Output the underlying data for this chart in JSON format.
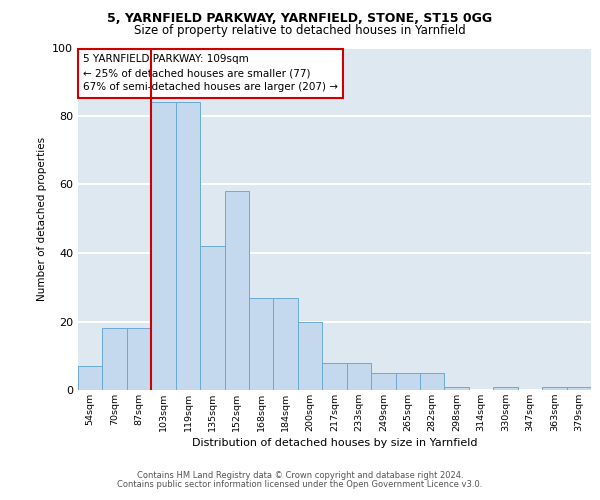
{
  "title1": "5, YARNFIELD PARKWAY, YARNFIELD, STONE, ST15 0GG",
  "title2": "Size of property relative to detached houses in Yarnfield",
  "xlabel": "Distribution of detached houses by size in Yarnfield",
  "ylabel": "Number of detached properties",
  "bar_labels": [
    "54sqm",
    "70sqm",
    "87sqm",
    "103sqm",
    "119sqm",
    "135sqm",
    "152sqm",
    "168sqm",
    "184sqm",
    "200sqm",
    "217sqm",
    "233sqm",
    "249sqm",
    "265sqm",
    "282sqm",
    "298sqm",
    "314sqm",
    "330sqm",
    "347sqm",
    "363sqm",
    "379sqm"
  ],
  "bar_values": [
    7,
    18,
    18,
    84,
    84,
    42,
    58,
    27,
    27,
    20,
    8,
    8,
    5,
    5,
    5,
    1,
    0,
    1,
    0,
    1,
    1
  ],
  "bar_color": "#c5d9ee",
  "bar_edge_color": "#6aaad4",
  "vline_color": "#cc0000",
  "vline_x": 2.5,
  "annotation_text": "5 YARNFIELD PARKWAY: 109sqm\n← 25% of detached houses are smaller (77)\n67% of semi-detached houses are larger (207) →",
  "annotation_box_facecolor": "white",
  "annotation_box_edgecolor": "#cc0000",
  "ylim": [
    0,
    100
  ],
  "yticks": [
    0,
    20,
    40,
    60,
    80,
    100
  ],
  "bg_color": "#dde8f0",
  "grid_color": "#ffffff",
  "footer1": "Contains HM Land Registry data © Crown copyright and database right 2024.",
  "footer2": "Contains public sector information licensed under the Open Government Licence v3.0."
}
